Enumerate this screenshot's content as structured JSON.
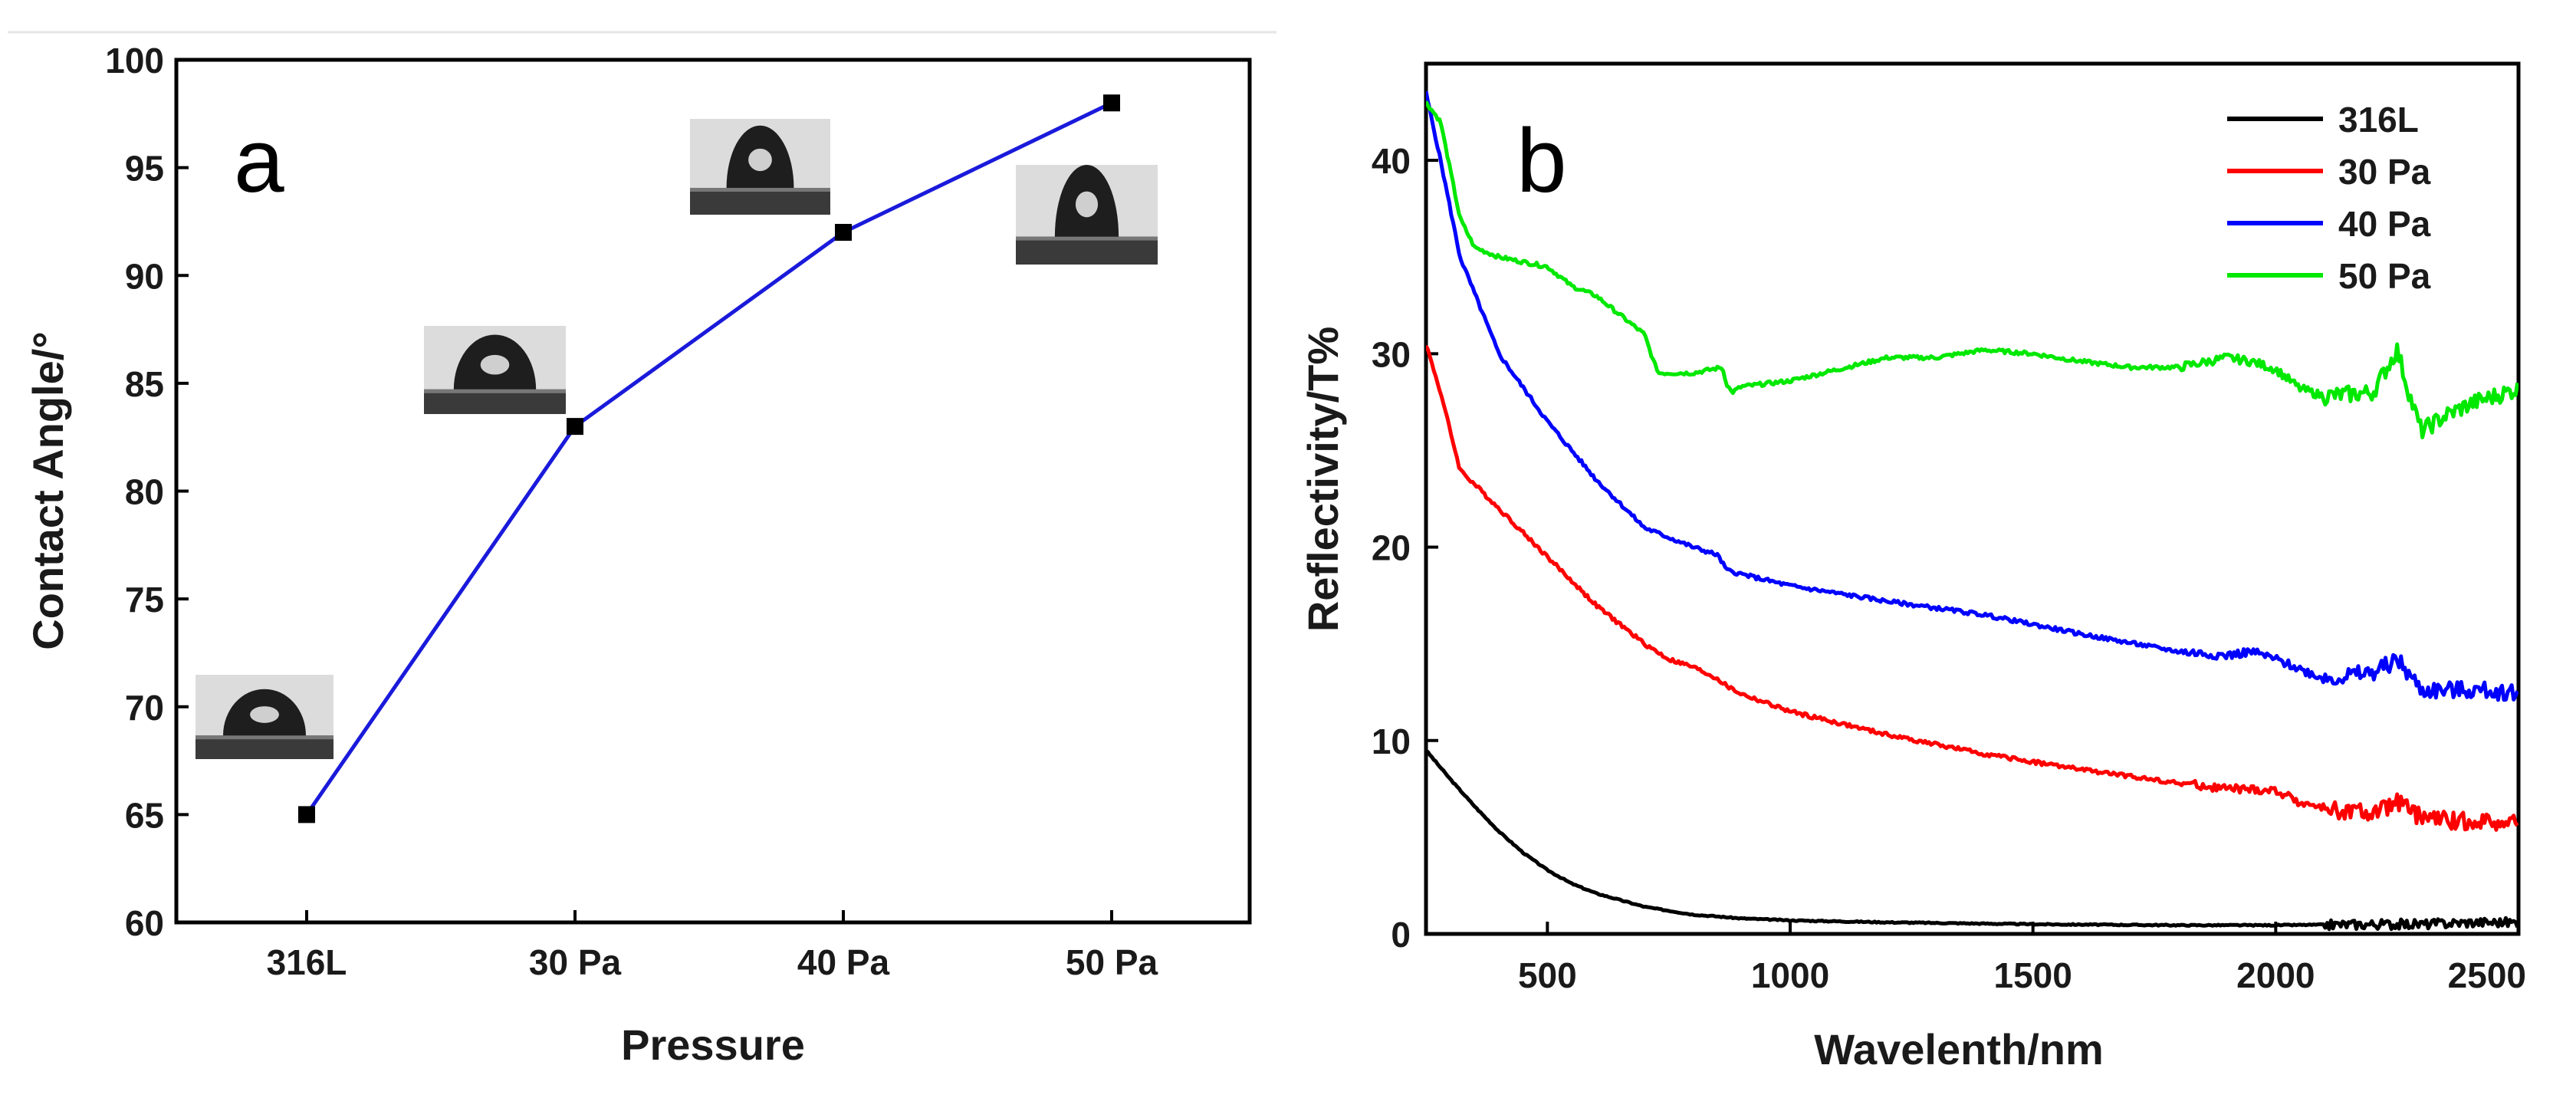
{
  "chart_data": [
    {
      "type": "line",
      "panel_label": "a",
      "xlabel": "Pressure",
      "ylabel": "Contact Angle/°",
      "categories": [
        "316L",
        "30 Pa",
        "40 Pa",
        "50 Pa"
      ],
      "values": [
        65,
        83,
        92,
        98
      ],
      "ylim": [
        60,
        100
      ],
      "yticks": [
        60,
        65,
        70,
        75,
        80,
        85,
        90,
        95,
        100
      ],
      "grid": false,
      "line_color": "#1a1adb",
      "marker_color": "#000000",
      "insets": "droplet photographs near each data point"
    },
    {
      "type": "line",
      "panel_label": "b",
      "xlabel": "Wavelenth/nm",
      "ylabel": "Reflectivity/T%",
      "xlim": [
        250,
        2500
      ],
      "ylim": [
        0,
        45
      ],
      "xticks": [
        500,
        1000,
        1500,
        2000,
        2500
      ],
      "yticks": [
        0,
        10,
        20,
        30,
        40
      ],
      "grid": false,
      "legend_position": "top-right",
      "series": [
        {
          "name": "316L",
          "color": "#000000",
          "x": [
            250,
            300,
            350,
            400,
            450,
            500,
            550,
            600,
            700,
            800,
            900,
            1000,
            1200,
            1500,
            1800,
            2000,
            2200,
            2300,
            2400,
            2500
          ],
          "values": [
            9.5,
            8.0,
            6.6,
            5.3,
            4.2,
            3.3,
            2.6,
            2.1,
            1.4,
            1.0,
            0.8,
            0.7,
            0.6,
            0.5,
            0.45,
            0.45,
            0.5,
            0.5,
            0.6,
            0.6
          ]
        },
        {
          "name": "30 Pa",
          "color": "#ff0000",
          "x": [
            250,
            280,
            320,
            400,
            500,
            600,
            700,
            750,
            800,
            850,
            870,
            900,
            1000,
            1200,
            1400,
            1600,
            1800,
            1900,
            2000,
            2050,
            2100,
            2200,
            2250,
            2300,
            2400,
            2500
          ],
          "values": [
            30.5,
            28,
            24,
            22,
            19.5,
            17,
            15,
            14.2,
            13.8,
            13.2,
            12.8,
            12.4,
            11.5,
            10.3,
            9.3,
            8.5,
            7.8,
            7.5,
            7.4,
            6.8,
            6.5,
            6.2,
            6.8,
            6.0,
            5.8,
            5.8
          ]
        },
        {
          "name": "40 Pa",
          "color": "#0000ff",
          "x": [
            250,
            280,
            320,
            400,
            500,
            600,
            700,
            800,
            850,
            870,
            900,
            1000,
            1200,
            1400,
            1600,
            1800,
            1900,
            1950,
            2000,
            2100,
            2200,
            2250,
            2300,
            2400,
            2500
          ],
          "values": [
            43.5,
            40,
            35,
            30,
            26.5,
            23.5,
            21,
            20,
            19.6,
            18.8,
            18.6,
            18,
            17.2,
            16.5,
            15.5,
            14.6,
            14.4,
            14.6,
            14.2,
            13.2,
            13.5,
            14.2,
            12.6,
            12.6,
            12.5
          ]
        },
        {
          "name": "50 Pa",
          "color": "#00e800",
          "x": [
            250,
            280,
            320,
            350,
            400,
            500,
            550,
            600,
            650,
            700,
            720,
            730,
            800,
            860,
            870,
            880,
            900,
            1000,
            1100,
            1200,
            1300,
            1400,
            1500,
            1600,
            1700,
            1800,
            1900,
            1950,
            2000,
            2050,
            2100,
            2200,
            2250,
            2280,
            2300,
            2350,
            2400,
            2500
          ],
          "values": [
            43,
            42,
            37,
            35.5,
            35,
            34.5,
            33.5,
            33,
            32,
            31,
            29.5,
            29,
            29,
            29.3,
            28.4,
            28,
            28.3,
            28.6,
            29.2,
            29.8,
            29.8,
            30.2,
            30,
            29.6,
            29.3,
            29.3,
            29.8,
            29.6,
            29.2,
            28.2,
            27.8,
            28,
            30.2,
            27.5,
            26,
            26.8,
            27.4,
            28.2
          ]
        }
      ]
    }
  ]
}
